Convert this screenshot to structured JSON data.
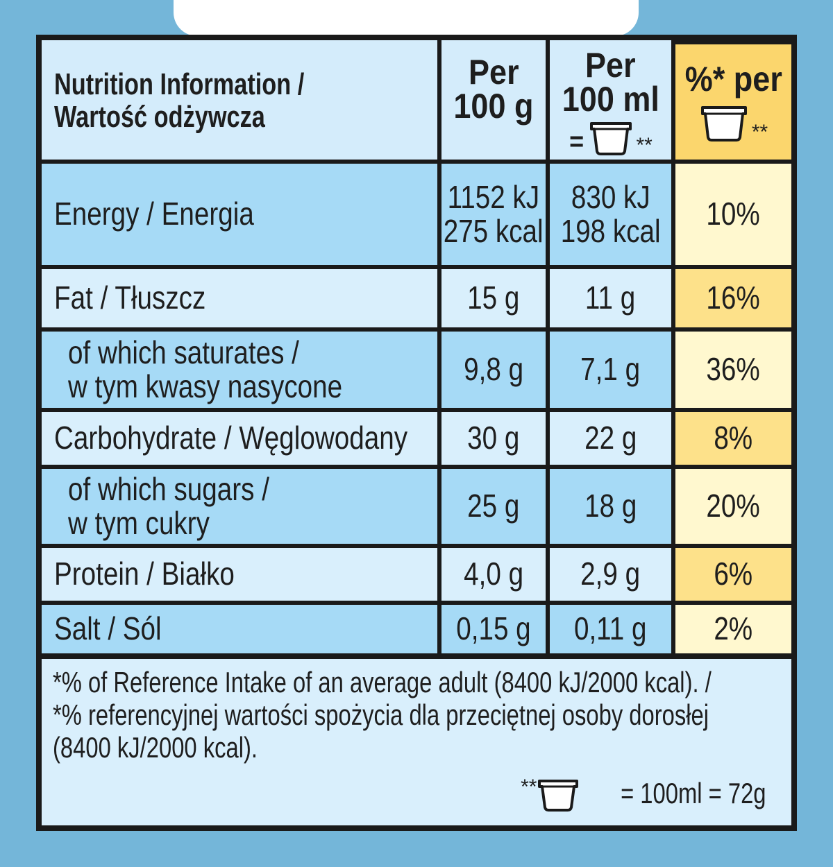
{
  "header": {
    "title_line1": "Nutrition Information /",
    "title_line2": "Wartość odżywcza",
    "col1_line1": "Per",
    "col1_line2": "100 g",
    "col2_line1": "Per",
    "col2_line2": "100 ml",
    "col2_eq": "=",
    "col2_stars": "**",
    "col3_line1": "%* per",
    "col3_stars": "**"
  },
  "rows": [
    {
      "label": [
        "Energy / Energia"
      ],
      "per100g": [
        "1152 kJ",
        "275 kcal"
      ],
      "per100ml": [
        "830 kJ",
        "198 kcal"
      ],
      "ri": "10%"
    },
    {
      "label": [
        "Fat / Tłuszcz"
      ],
      "per100g": [
        "15 g"
      ],
      "per100ml": [
        "11 g"
      ],
      "ri": "16%"
    },
    {
      "label": [
        "of which saturates /",
        "w tym kwasy nasycone"
      ],
      "per100g": [
        "9,8 g"
      ],
      "per100ml": [
        "7,1 g"
      ],
      "ri": "36%"
    },
    {
      "label": [
        "Carbohydrate / Węglowodany"
      ],
      "per100g": [
        "30 g"
      ],
      "per100ml": [
        "22 g"
      ],
      "ri": "8%"
    },
    {
      "label": [
        "of which sugars /",
        "w tym cukry"
      ],
      "per100g": [
        "25 g"
      ],
      "per100ml": [
        "18 g"
      ],
      "ri": "20%"
    },
    {
      "label": [
        "Protein / Białko"
      ],
      "per100g": [
        "4,0 g"
      ],
      "per100ml": [
        "2,9 g"
      ],
      "ri": "6%"
    },
    {
      "label": [
        "Salt / Sól"
      ],
      "per100g": [
        "0,15 g"
      ],
      "per100ml": [
        "0,11 g"
      ],
      "ri": "2%"
    }
  ],
  "footnote": {
    "line1": "*% of Reference Intake of an average adult (8400 kJ/2000 kcal). /",
    "line2": "*% referencyjnej wartości spożycia dla przeciętnej osoby dorosłej",
    "line3": "(8400 kJ/2000 kcal).",
    "legend_stars": "**",
    "legend_text": "= 100ml = 72g"
  },
  "colors": {
    "background": "#74b6d9",
    "light_blue": "#d9effc",
    "dark_blue": "#a6daf6",
    "light_yellow": "#fff8cf",
    "dark_yellow": "#fde18a",
    "header_yellow": "#fbd66d"
  },
  "icons": [
    "tub-icon"
  ]
}
